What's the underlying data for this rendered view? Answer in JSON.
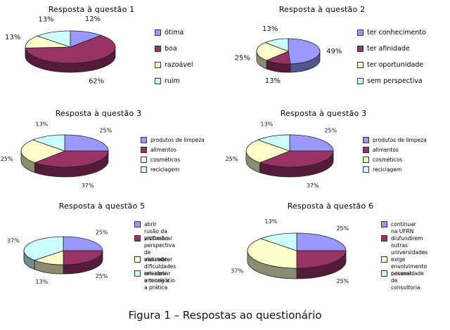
{
  "caption": "Figura 1 – Respostas ao questionário",
  "chart_data": [
    {
      "type": "pie",
      "title": "Resposta à questão 1",
      "categories": [
        "ótima",
        "boa",
        "razoável",
        "ruim"
      ],
      "values": [
        12,
        62,
        13,
        13
      ],
      "labels": [
        "12%",
        "62%",
        "13%",
        "13%"
      ],
      "colors": [
        "#9999FF",
        "#993366",
        "#FFFFCC",
        "#CCFFFF"
      ],
      "legend": "right"
    },
    {
      "type": "pie",
      "title": "Resposta à questão 2",
      "categories": [
        "ter conhecimento",
        "ter afinidade",
        "ter oportunidade",
        "sem perspectiva"
      ],
      "values": [
        49,
        13,
        25,
        13
      ],
      "labels": [
        "49%",
        "13%",
        "25%",
        "13%"
      ],
      "colors": [
        "#9999FF",
        "#993366",
        "#FFFFCC",
        "#CCFFFF"
      ],
      "legend": "right"
    },
    {
      "type": "pie",
      "title": "Resposta à questão 3",
      "categories": [
        "produtos de limpeza",
        "alimentos",
        "cosméticos",
        "reciclagem"
      ],
      "values": [
        25,
        37,
        25,
        13
      ],
      "labels": [
        "25%",
        "37%",
        "25%",
        "13%"
      ],
      "colors": [
        "#9999FF",
        "#993366",
        "#FFFFCC",
        "#CCFFFF"
      ],
      "legend": "right"
    },
    {
      "type": "pie",
      "title": "Resposta à questão 3",
      "categories": [
        "produtos de limpeza",
        "alimentos",
        "cosméticos",
        "reciclagem"
      ],
      "values": [
        25,
        37,
        25,
        13
      ],
      "labels": [
        "25%",
        "37%",
        "25%",
        "13%"
      ],
      "colors": [
        "#9999FF",
        "#993366",
        "#FFFFCC",
        "#CCFFFF"
      ],
      "legend": "right"
    },
    {
      "type": "pie",
      "title": "Resposta à questão 5",
      "categories": [
        "abrir rusão da profissão",
        "vislumbrar perspectiva de mercado",
        "vislumbrar dificuldades em abrir um negócio",
        "relacionar a teoria e a prática"
      ],
      "values": [
        25,
        25,
        13,
        37
      ],
      "labels": [
        "25%",
        "25%",
        "13%",
        "37%"
      ],
      "colors": [
        "#9999FF",
        "#993366",
        "#FFFFCC",
        "#CCFFFF"
      ],
      "legend": "right"
    },
    {
      "type": "pie",
      "title": "Resposta à questão 6",
      "categories": [
        "continuar na UFRN",
        "diufundirem outras universidades",
        "exige envolvimento pessoal",
        "necessidade de consultoria"
      ],
      "values": [
        25,
        25,
        37,
        13
      ],
      "labels": [
        "25%",
        "25%",
        "37%",
        "13%"
      ],
      "colors": [
        "#9999FF",
        "#993366",
        "#FFFFCC",
        "#CCFFFF"
      ],
      "legend": "right"
    }
  ]
}
